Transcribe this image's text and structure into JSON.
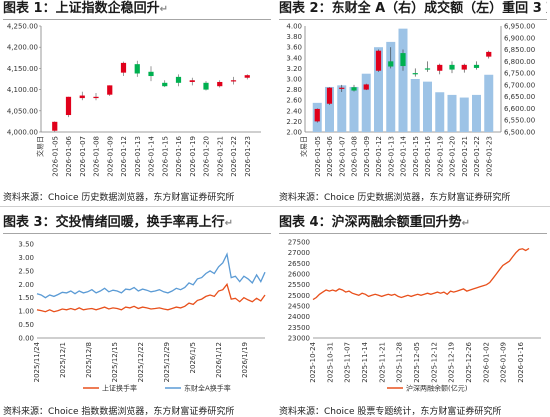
{
  "return_mark": "↵",
  "panels": [
    {
      "label": "图表 1：",
      "title": "上证指数企稳回升",
      "source": "资料来源：Choice 历史数据浏览器，东方财富证券研究所"
    },
    {
      "label": "图表 2：",
      "title": "东财全 A（右）成交额（左）重回 3 万亿",
      "source": "资料来源：Choice 历史数据浏览器，东方财富证券研究所"
    },
    {
      "label": "图表 3：",
      "title": "交投情绪回暖，换手率再上行",
      "source": "资料来源：Choice 指数数据浏览器，东方财富证券研究所"
    },
    {
      "label": "图表 4：",
      "title": "沪深两融余额重回升势",
      "source": "资料来源：Choice 股票专题统计，东方财富证券研究所"
    }
  ],
  "colors": {
    "up": "#e0001b",
    "down": "#00b050",
    "neutral": "#9dc3e6",
    "bar": "#9dc3e6",
    "line_blue": "#5b9bd5",
    "line_orange": "#e8501c",
    "axis": "#7f7f7f",
    "grid": "#d9d9d9"
  },
  "chart_data": [
    {
      "type": "candlestick",
      "x_name": "交易日",
      "categories": [
        "2026-01-05",
        "2026-01-06",
        "2026-01-07",
        "2026-01-08",
        "2026-01-09",
        "2026-01-12",
        "2026-01-13",
        "2026-01-14",
        "2026-01-15",
        "2026-01-16",
        "2026-01-19",
        "2026-01-20",
        "2026-01-21",
        "2026-01-22",
        "2026-01-23"
      ],
      "ohlc": [
        [
          4003,
          4025,
          4001,
          4024
        ],
        [
          4040,
          4083,
          4035,
          4083
        ],
        [
          4080,
          4095,
          4075,
          4086
        ],
        [
          4080,
          4092,
          4075,
          4083
        ],
        [
          4088,
          4110,
          4085,
          4110
        ],
        [
          4140,
          4166,
          4132,
          4163
        ],
        [
          4160,
          4168,
          4130,
          4138
        ],
        [
          4142,
          4155,
          4120,
          4132
        ],
        [
          4116,
          4122,
          4106,
          4108
        ],
        [
          4130,
          4136,
          4108,
          4116
        ],
        [
          4118,
          4128,
          4110,
          4122
        ],
        [
          4116,
          4120,
          4098,
          4100
        ],
        [
          4108,
          4122,
          4105,
          4118
        ],
        [
          4120,
          4130,
          4112,
          4122
        ],
        [
          4128,
          4136,
          4124,
          4134
        ]
      ],
      "ylim": [
        4000,
        4250
      ],
      "yticks": [
        4000,
        4050,
        4100,
        4150,
        4200,
        4250
      ],
      "ytick_labels": [
        "4,000.00",
        "4,050.00",
        "4,100.00",
        "4,150.00",
        "4,200.00",
        "4,250.00"
      ]
    },
    {
      "type": "bar+candlestick",
      "x_name": "交易日",
      "categories": [
        "2026-01-05",
        "2026-01-06",
        "2026-01-07",
        "2026-01-08",
        "2026-01-09",
        "2026-01-12",
        "2026-01-13",
        "2026-01-14",
        "2026-01-15",
        "2026-01-16",
        "2026-01-19",
        "2026-01-20",
        "2026-01-21",
        "2026-01-22",
        "2026-01-23"
      ],
      "bar_values": [
        2.55,
        2.85,
        2.88,
        2.85,
        3.1,
        3.6,
        3.7,
        3.95,
        3.0,
        2.95,
        2.75,
        2.7,
        2.65,
        2.7,
        3.08
      ],
      "bar_ylim": [
        2.0,
        4.0
      ],
      "bar_yticks": [
        2.0,
        2.2,
        2.4,
        2.6,
        2.8,
        3.0,
        3.2,
        3.4,
        3.6,
        3.8,
        4.0
      ],
      "bar_ytick_labels": [
        "2.00",
        "2.20",
        "2.40",
        "2.60",
        "2.80",
        "3.00",
        "3.20",
        "3.40",
        "3.60",
        "3.80",
        "4.00"
      ],
      "ohlc": [
        [
          6545,
          6600,
          6540,
          6598
        ],
        [
          6620,
          6690,
          6615,
          6688
        ],
        [
          6685,
          6700,
          6670,
          6688
        ],
        [
          6690,
          6700,
          6672,
          6676
        ],
        [
          6680,
          6705,
          6678,
          6702
        ],
        [
          6760,
          6850,
          6755,
          6845
        ],
        [
          6800,
          6860,
          6770,
          6778
        ],
        [
          6835,
          6850,
          6760,
          6780
        ],
        [
          6750,
          6770,
          6735,
          6745
        ],
        [
          6770,
          6800,
          6755,
          6765
        ],
        [
          6760,
          6790,
          6745,
          6785
        ],
        [
          6785,
          6800,
          6750,
          6765
        ],
        [
          6765,
          6790,
          6752,
          6785
        ],
        [
          6785,
          6800,
          6765,
          6772
        ],
        [
          6820,
          6845,
          6812,
          6840
        ]
      ],
      "ylim_right": [
        6500,
        6950
      ],
      "yticks_right": [
        6500,
        6550,
        6600,
        6650,
        6700,
        6750,
        6800,
        6850,
        6900,
        6950
      ],
      "ytick_labels_right": [
        "6,500.00",
        "6,550.00",
        "6,600.00",
        "6,650.00",
        "6,700.00",
        "6,750.00",
        "6,800.00",
        "6,850.00",
        "6,900.00",
        "6,950.00"
      ]
    },
    {
      "type": "line",
      "series": [
        {
          "name": "上证换手率",
          "color": "#e8501c",
          "values": [
            1.05,
            1.02,
            0.98,
            1.05,
            0.98,
            1.02,
            1.08,
            1.05,
            1.1,
            1.05,
            1.12,
            1.05,
            1.08,
            1.1,
            1.05,
            1.1,
            1.15,
            1.08,
            1.12,
            1.1,
            1.05,
            1.15,
            1.12,
            1.18,
            1.1,
            1.15,
            1.12,
            1.08,
            1.1,
            1.12,
            1.08,
            1.05,
            1.1,
            1.15,
            1.12,
            1.18,
            1.3,
            1.25,
            1.4,
            1.45,
            1.55,
            1.6,
            1.55,
            1.75,
            1.8,
            2.0,
            1.45,
            1.48,
            1.35,
            1.5,
            1.42,
            1.35,
            1.48,
            1.38,
            1.6
          ]
        },
        {
          "name": "东财全A换手率",
          "color": "#5b9bd5",
          "values": [
            1.65,
            1.6,
            1.5,
            1.6,
            1.55,
            1.62,
            1.7,
            1.68,
            1.75,
            1.65,
            1.75,
            1.68,
            1.72,
            1.8,
            1.68,
            1.75,
            1.85,
            1.72,
            1.78,
            1.75,
            1.68,
            1.82,
            1.8,
            1.88,
            1.75,
            1.82,
            1.78,
            1.72,
            1.75,
            1.8,
            1.72,
            1.68,
            1.75,
            1.85,
            1.8,
            1.88,
            2.05,
            1.98,
            2.2,
            2.25,
            2.4,
            2.5,
            2.4,
            2.65,
            2.8,
            3.12,
            2.25,
            2.3,
            2.1,
            2.3,
            2.2,
            2.05,
            2.35,
            2.1,
            2.45
          ]
        }
      ],
      "x_tick_labels": [
        "2025/11/24",
        "2025/12/1",
        "2025/12/8",
        "2025/12/15",
        "2025/12/22",
        "2025/12/29",
        "2026/1/5",
        "2026/1/12",
        "2026/1/19"
      ],
      "ylim": [
        0,
        3.5
      ],
      "yticks": [
        0,
        0.5,
        1.0,
        1.5,
        2.0,
        2.5,
        3.0,
        3.5
      ],
      "ytick_labels": [
        "0.00",
        "0.50",
        "1.00",
        "1.50",
        "2.00",
        "2.50",
        "3.00",
        "3.50"
      ]
    },
    {
      "type": "line",
      "series": [
        {
          "name": "沪深两融余额(亿元)",
          "color": "#e8501c",
          "values": [
            24800,
            24900,
            25050,
            25150,
            25250,
            25200,
            25250,
            25200,
            25300,
            25250,
            25150,
            25200,
            25100,
            25050,
            25000,
            25100,
            25050,
            24950,
            25000,
            25050,
            25000,
            24950,
            25000,
            25050,
            25000,
            25050,
            24950,
            24900,
            24950,
            25000,
            24950,
            25000,
            25050,
            25000,
            25050,
            25100,
            25050,
            25100,
            25150,
            25100,
            25150,
            25050,
            25200,
            25150,
            25200,
            25250,
            25300,
            25200,
            25250,
            25300,
            25350,
            25400,
            25450,
            25500,
            25600,
            25800,
            26000,
            26200,
            26400,
            26500,
            26600,
            26800,
            27000,
            27150,
            27180,
            27100,
            27200
          ]
        }
      ],
      "x_tick_labels": [
        "2025-10-24",
        "2025-10-31",
        "2025-11-07",
        "2025-11-14",
        "2025-11-21",
        "2025-11-28",
        "2025-12-05",
        "2025-12-12",
        "2025-12-19",
        "2025-12-26",
        "2026-01-02",
        "2026-01-09",
        "2026-01-16"
      ],
      "ylim": [
        23000,
        27500
      ],
      "yticks": [
        23000,
        23500,
        24000,
        24500,
        25000,
        25500,
        26000,
        26500,
        27000,
        27500
      ],
      "ytick_labels": [
        "23000",
        "23500",
        "24000",
        "24500",
        "25000",
        "25500",
        "26000",
        "26500",
        "27000",
        "27500"
      ]
    }
  ]
}
